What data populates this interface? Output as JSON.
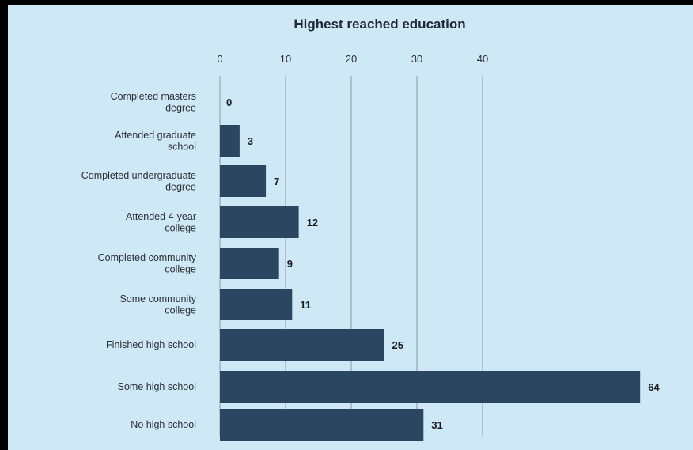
{
  "chart_data": {
    "type": "bar",
    "orientation": "horizontal",
    "title": "Highest reached education",
    "xlabel": "",
    "ylabel": "",
    "categories": [
      [
        "Completed masters",
        "degree"
      ],
      [
        "Attended graduate",
        "school"
      ],
      [
        "Completed undergraduate",
        "degree"
      ],
      [
        "Attended 4-year",
        "college"
      ],
      [
        "Completed community",
        "college"
      ],
      [
        "Some community",
        "college"
      ],
      [
        "Finished high school"
      ],
      [
        "Some high school"
      ],
      [
        "No high school"
      ]
    ],
    "values": [
      0,
      3,
      7,
      12,
      9,
      11,
      25,
      64,
      31
    ],
    "value_labels": [
      "0",
      "3",
      "7",
      "12",
      "9",
      "11",
      "25",
      "64",
      "31"
    ],
    "xticks": [
      0,
      10,
      20,
      30,
      40
    ],
    "xtick_labels": [
      "0",
      "10",
      "20",
      "30",
      "40"
    ],
    "grid": true,
    "colors": {
      "bar": "#2b4660",
      "background": "#cfe8f5",
      "frame": "#000000",
      "grid": "#8c99a4"
    }
  }
}
